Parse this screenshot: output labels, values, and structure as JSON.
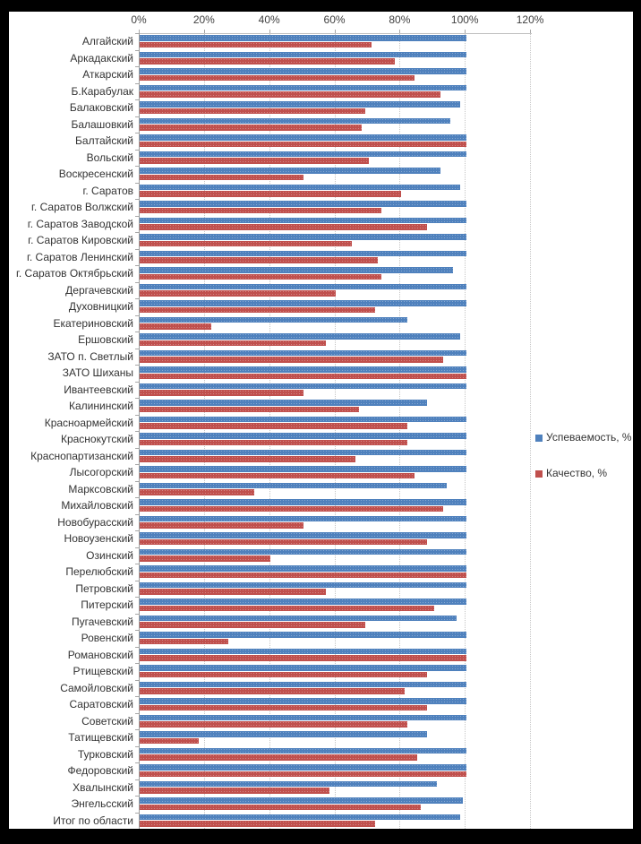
{
  "colors": {
    "series1": "#4f81bd",
    "series2": "#c0504d",
    "gridline": "#c6c6c6",
    "axis": "#a6a6a6",
    "panel_bg": "#ffffff",
    "page_bg": "#000000"
  },
  "axis": {
    "tick_labels": [
      "0%",
      "20%",
      "40%",
      "60%",
      "80%",
      "100%",
      "120%"
    ],
    "min": 0,
    "max": 120,
    "step": 20
  },
  "legend": {
    "position": "right",
    "items": [
      {
        "label": "Успеваемость, %",
        "color": "#4f81bd"
      },
      {
        "label": "Качество, %",
        "color": "#c0504d"
      }
    ]
  },
  "chart_data": {
    "type": "bar",
    "orientation": "horizontal",
    "title": "",
    "xlabel": "",
    "ylabel": "",
    "xlim": [
      0,
      120
    ],
    "grid": true,
    "legend_position": "right",
    "categories": [
      "Алгайский",
      "Аркадакский",
      "Аткарский",
      "Б.Карабулак",
      "Балаковский",
      "Балашовкий",
      "Балтайский",
      "Вольский",
      "Воскресенский",
      "г. Саратов",
      "г. Саратов Волжский",
      "г. Саратов Заводской",
      "г. Саратов Кировский",
      "г. Саратов Ленинский",
      "г. Саратов Октябрьский",
      "Дергачевский",
      "Духовницкий",
      "Екатериновский",
      "Ершовский",
      "ЗАТО п. Светлый",
      "ЗАТО Шиханы",
      "Ивантеевский",
      "Калининский",
      "Красноармейский",
      "Краснокутский",
      "Краснопартизанский",
      "Лысогорский",
      "Марксовский",
      "Михайловский",
      "Новобурасский",
      "Новоузенский",
      "Озинский",
      "Перелюбский",
      "Петровский",
      "Питерский",
      "Пугачевский",
      "Ровенский",
      "Романовский",
      "Ртищевский",
      "Самойловский",
      "Саратовский",
      "Советский",
      "Татищевский",
      "Турковский",
      "Федоровский",
      "Хвалынский",
      "Энгельсский",
      "Итог по области"
    ],
    "series": [
      {
        "name": "Успеваемость, %",
        "values": [
          100,
          100,
          100,
          100,
          98,
          95,
          100,
          100,
          92,
          98,
          100,
          100,
          100,
          100,
          96,
          100,
          100,
          82,
          98,
          100,
          100,
          100,
          88,
          100,
          100,
          100,
          100,
          94,
          100,
          100,
          100,
          100,
          100,
          100,
          100,
          97,
          100,
          100,
          100,
          100,
          100,
          100,
          88,
          100,
          100,
          91,
          99,
          98
        ]
      },
      {
        "name": "Качество, %",
        "values": [
          71,
          78,
          84,
          92,
          69,
          68,
          100,
          70,
          50,
          80,
          74,
          88,
          65,
          73,
          74,
          60,
          72,
          22,
          57,
          93,
          100,
          50,
          67,
          82,
          82,
          66,
          84,
          35,
          93,
          50,
          88,
          40,
          100,
          57,
          90,
          69,
          27,
          100,
          88,
          81,
          88,
          82,
          18,
          85,
          100,
          58,
          86,
          72
        ]
      }
    ]
  }
}
